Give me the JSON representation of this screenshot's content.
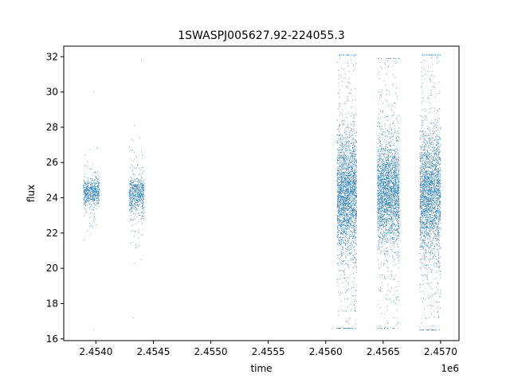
{
  "chart_data": {
    "type": "scatter",
    "title": "1SWASPJ005627.92-224055.3",
    "xlabel": "time",
    "ylabel": "flux",
    "x_offset_label": "1e6",
    "xlim": [
      2453720,
      2457160
    ],
    "ylim": [
      15.9,
      32.6
    ],
    "x_ticks": [
      2.454,
      2.4545,
      2.455,
      2.4555,
      2.456,
      2.4565,
      2.457
    ],
    "x_tick_labels": [
      "2.4540",
      "2.4545",
      "2.4550",
      "2.4555",
      "2.4560",
      "2.4565",
      "2.4570"
    ],
    "y_ticks": [
      16,
      18,
      20,
      22,
      24,
      26,
      28,
      30,
      32
    ],
    "y_tick_labels": [
      "16",
      "18",
      "20",
      "22",
      "24",
      "26",
      "28",
      "30",
      "32"
    ],
    "grid": false,
    "marker_color": "#1f77b4",
    "series": [
      {
        "segments": [
          {
            "x_range": [
              2453890,
              2454030
            ],
            "median": 24.3,
            "core_sd": 0.35,
            "min": 16.5,
            "max": 30.0,
            "count": 600
          },
          {
            "x_range": [
              2454290,
              2454420
            ],
            "median": 24.2,
            "core_sd": 0.5,
            "min": 17.2,
            "max": 31.8,
            "count": 650
          },
          {
            "x_range": [
              2456100,
              2456270
            ],
            "median": 24.2,
            "core_sd": 1.6,
            "min": 16.6,
            "max": 32.1,
            "count": 2600
          },
          {
            "x_range": [
              2456450,
              2456640
            ],
            "median": 24.3,
            "core_sd": 1.4,
            "min": 16.6,
            "max": 31.9,
            "count": 2600
          },
          {
            "x_range": [
              2456820,
              2457000
            ],
            "median": 24.2,
            "core_sd": 1.7,
            "min": 16.5,
            "max": 32.1,
            "count": 2600
          }
        ]
      }
    ]
  }
}
